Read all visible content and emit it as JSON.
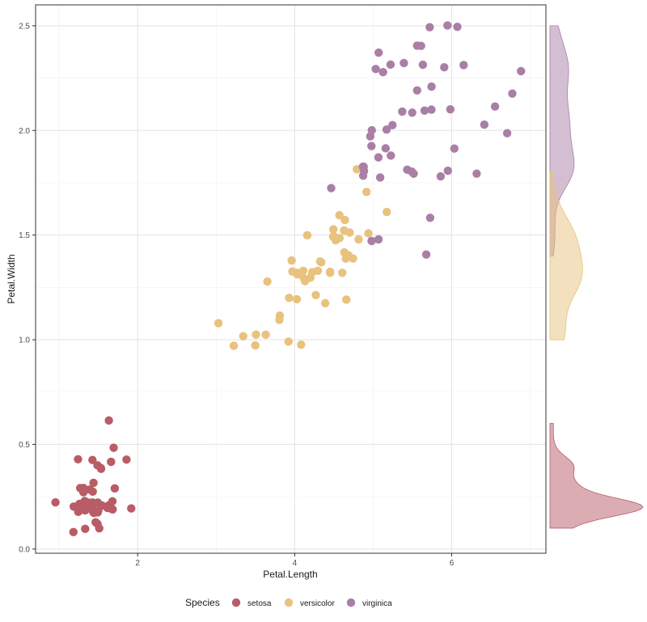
{
  "chart_data": {
    "type": "scatter",
    "title": "",
    "xlabel": "Petal.Length",
    "ylabel": "Petal.Width",
    "xlim": [
      0.7,
      7.2
    ],
    "ylim": [
      -0.02,
      2.6
    ],
    "x_ticks": [
      2,
      4,
      6
    ],
    "y_ticks": [
      0.0,
      0.5,
      1.0,
      1.5,
      2.0,
      2.5
    ],
    "x_tick_labels": [
      "2",
      "4",
      "6"
    ],
    "y_tick_labels": [
      "0.0",
      "0.5",
      "1.0",
      "1.5",
      "2.0",
      "2.5"
    ],
    "grid": true,
    "legend": {
      "title": "Species",
      "position": "bottom",
      "entries": [
        "setosa",
        "versicolor",
        "virginica"
      ]
    },
    "colors": {
      "setosa": "#b85c66",
      "versicolor": "#e8c27e",
      "virginica": "#a97fa6"
    },
    "series": [
      {
        "name": "setosa",
        "points": [
          [
            1.4,
            0.2
          ],
          [
            1.4,
            0.2
          ],
          [
            1.3,
            0.2
          ],
          [
            1.5,
            0.2
          ],
          [
            1.4,
            0.2
          ],
          [
            1.7,
            0.4
          ],
          [
            1.4,
            0.3
          ],
          [
            1.5,
            0.2
          ],
          [
            1.4,
            0.2
          ],
          [
            1.5,
            0.1
          ],
          [
            1.5,
            0.2
          ],
          [
            1.6,
            0.2
          ],
          [
            1.4,
            0.1
          ],
          [
            1.1,
            0.1
          ],
          [
            1.2,
            0.2
          ],
          [
            1.5,
            0.4
          ],
          [
            1.3,
            0.4
          ],
          [
            1.4,
            0.3
          ],
          [
            1.7,
            0.3
          ],
          [
            1.5,
            0.3
          ],
          [
            1.7,
            0.2
          ],
          [
            1.5,
            0.4
          ],
          [
            1.0,
            0.2
          ],
          [
            1.7,
            0.5
          ],
          [
            1.9,
            0.2
          ],
          [
            1.6,
            0.2
          ],
          [
            1.6,
            0.4
          ],
          [
            1.5,
            0.2
          ],
          [
            1.4,
            0.2
          ],
          [
            1.6,
            0.2
          ],
          [
            1.6,
            0.2
          ],
          [
            1.5,
            0.4
          ],
          [
            1.5,
            0.1
          ],
          [
            1.4,
            0.2
          ],
          [
            1.5,
            0.2
          ],
          [
            1.2,
            0.2
          ],
          [
            1.3,
            0.2
          ],
          [
            1.4,
            0.1
          ],
          [
            1.3,
            0.2
          ],
          [
            1.5,
            0.2
          ],
          [
            1.3,
            0.3
          ],
          [
            1.3,
            0.3
          ],
          [
            1.3,
            0.2
          ],
          [
            1.6,
            0.6
          ],
          [
            1.9,
            0.4
          ],
          [
            1.4,
            0.3
          ],
          [
            1.6,
            0.2
          ],
          [
            1.4,
            0.2
          ],
          [
            1.5,
            0.2
          ],
          [
            1.4,
            0.2
          ]
        ]
      },
      {
        "name": "versicolor",
        "points": [
          [
            4.7,
            1.4
          ],
          [
            4.5,
            1.5
          ],
          [
            4.9,
            1.5
          ],
          [
            4.0,
            1.3
          ],
          [
            4.6,
            1.5
          ],
          [
            4.5,
            1.3
          ],
          [
            4.7,
            1.6
          ],
          [
            3.3,
            1.0
          ],
          [
            4.6,
            1.3
          ],
          [
            3.9,
            1.4
          ],
          [
            3.5,
            1.0
          ],
          [
            4.2,
            1.5
          ],
          [
            4.0,
            1.0
          ],
          [
            4.7,
            1.4
          ],
          [
            3.6,
            1.3
          ],
          [
            4.4,
            1.4
          ],
          [
            4.5,
            1.5
          ],
          [
            4.1,
            1.0
          ],
          [
            4.5,
            1.5
          ],
          [
            3.9,
            1.1
          ],
          [
            4.8,
            1.8
          ],
          [
            4.0,
            1.3
          ],
          [
            4.9,
            1.5
          ],
          [
            4.7,
            1.2
          ],
          [
            4.3,
            1.3
          ],
          [
            4.4,
            1.4
          ],
          [
            4.8,
            1.4
          ],
          [
            5.0,
            1.7
          ],
          [
            4.5,
            1.5
          ],
          [
            3.5,
            1.0
          ],
          [
            3.8,
            1.1
          ],
          [
            3.7,
            1.0
          ],
          [
            3.9,
            1.2
          ],
          [
            5.1,
            1.6
          ],
          [
            4.5,
            1.5
          ],
          [
            4.5,
            1.6
          ],
          [
            4.7,
            1.5
          ],
          [
            4.4,
            1.3
          ],
          [
            4.1,
            1.3
          ],
          [
            4.0,
            1.3
          ],
          [
            4.4,
            1.2
          ],
          [
            4.6,
            1.4
          ],
          [
            4.0,
            1.2
          ],
          [
            3.3,
            1.0
          ],
          [
            4.2,
            1.3
          ],
          [
            4.2,
            1.2
          ],
          [
            4.2,
            1.3
          ],
          [
            4.3,
            1.3
          ],
          [
            3.0,
            1.1
          ],
          [
            4.1,
            1.3
          ]
        ]
      },
      {
        "name": "virginica",
        "points": [
          [
            6.0,
            2.5
          ],
          [
            5.1,
            1.9
          ],
          [
            5.9,
            2.1
          ],
          [
            5.6,
            1.8
          ],
          [
            5.8,
            2.2
          ],
          [
            6.6,
            2.1
          ],
          [
            4.5,
            1.7
          ],
          [
            6.3,
            1.8
          ],
          [
            5.8,
            1.8
          ],
          [
            6.1,
            2.5
          ],
          [
            5.1,
            2.0
          ],
          [
            5.3,
            1.9
          ],
          [
            5.5,
            2.1
          ],
          [
            5.0,
            2.0
          ],
          [
            5.1,
            2.4
          ],
          [
            5.3,
            2.3
          ],
          [
            5.5,
            1.8
          ],
          [
            6.7,
            2.2
          ],
          [
            6.9,
            2.3
          ],
          [
            5.0,
            1.5
          ],
          [
            5.7,
            2.3
          ],
          [
            4.9,
            2.0
          ],
          [
            6.7,
            2.0
          ],
          [
            4.9,
            1.8
          ],
          [
            5.7,
            2.1
          ],
          [
            6.0,
            1.8
          ],
          [
            4.8,
            1.8
          ],
          [
            4.9,
            1.8
          ],
          [
            5.6,
            2.1
          ],
          [
            5.8,
            1.6
          ],
          [
            6.1,
            1.9
          ],
          [
            6.4,
            2.0
          ],
          [
            5.6,
            2.2
          ],
          [
            5.1,
            1.5
          ],
          [
            5.6,
            1.4
          ],
          [
            6.1,
            2.3
          ],
          [
            5.6,
            2.4
          ],
          [
            5.5,
            1.8
          ],
          [
            4.8,
            1.8
          ],
          [
            5.4,
            2.1
          ],
          [
            5.6,
            2.4
          ],
          [
            5.1,
            2.3
          ],
          [
            5.1,
            1.9
          ],
          [
            5.9,
            2.3
          ],
          [
            5.7,
            2.5
          ],
          [
            5.2,
            2.3
          ],
          [
            5.0,
            1.9
          ],
          [
            5.2,
            2.0
          ],
          [
            5.4,
            2.3
          ],
          [
            5.1,
            1.8
          ]
        ]
      }
    ]
  }
}
